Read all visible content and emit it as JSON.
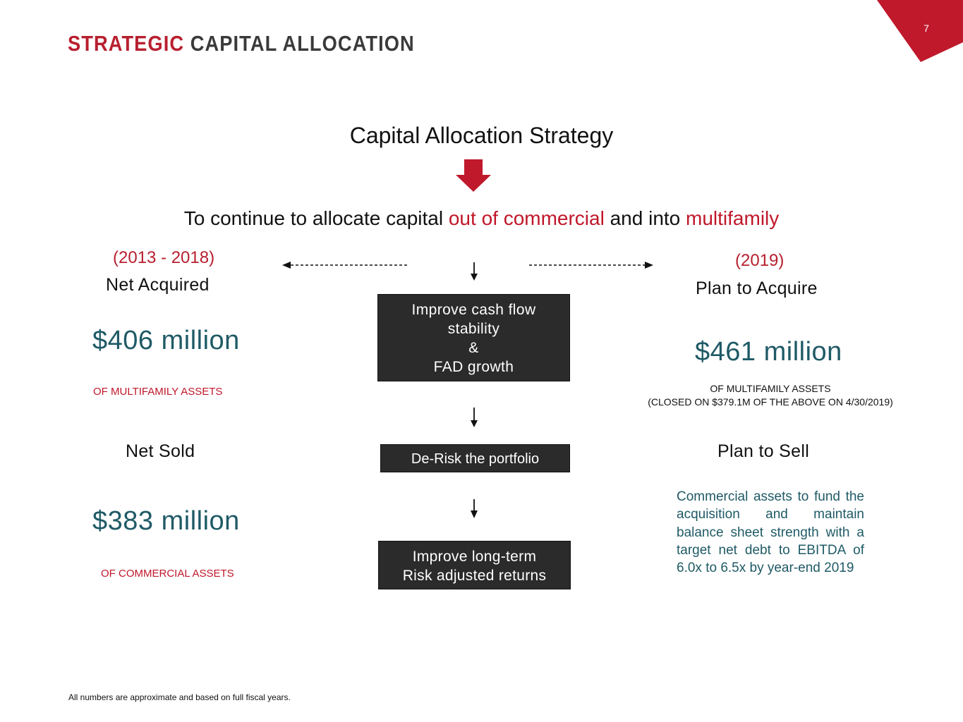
{
  "page": {
    "number": "7"
  },
  "header": {
    "title_highlight": "STRATEGIC",
    "title_rest": "CAPITAL ALLOCATION"
  },
  "strategy": {
    "title": "Capital Allocation Strategy",
    "goal_part1": "To continue to allocate capital ",
    "goal_highlight1": "out of commercial",
    "goal_part2": " and into ",
    "goal_highlight2": "multifamily"
  },
  "left": {
    "period": "(2013 - 2018)",
    "acquired_label": "Net Acquired",
    "acquired_amount": "$406 million",
    "acquired_caption": "OF MULTIFAMILY ASSETS",
    "sold_label": "Net Sold",
    "sold_amount": "$383 million",
    "sold_caption": "OF COMMERCIAL ASSETS"
  },
  "center": {
    "box1_lines": [
      "Improve cash flow",
      "stability",
      "&",
      "FAD growth"
    ],
    "box2_label": "De-Risk the portfolio",
    "box3_lines": [
      "Improve long-term",
      "Risk adjusted returns"
    ]
  },
  "right": {
    "period": "(2019)",
    "acquire_label": "Plan to Acquire",
    "acquire_amount": "$461 million",
    "acquire_caption": "OF MULTIFAMILY ASSETS",
    "acquire_note": "(CLOSED ON $379.1M OF THE ABOVE ON 4/30/2019)",
    "sell_label": "Plan to Sell",
    "sell_note": "Commercial assets to fund the acquisition and maintain balance sheet strength with a target net debt to EBITDA of 6.0x to 6.5x by year-end 2019"
  },
  "footnote": "All numbers are approximate and based on full fiscal years.",
  "colors": {
    "accent_red": "#c0172a",
    "teal": "#1f5a66",
    "box_fill": "#2b2b2b",
    "corner_red": "#c0192c"
  }
}
